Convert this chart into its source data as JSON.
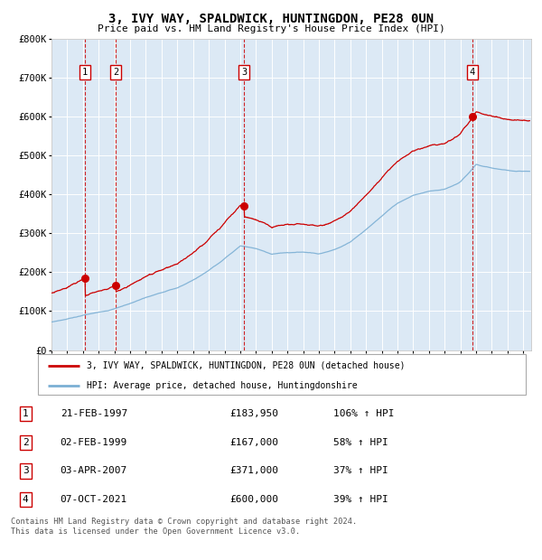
{
  "title": "3, IVY WAY, SPALDWICK, HUNTINGDON, PE28 0UN",
  "subtitle": "Price paid vs. HM Land Registry's House Price Index (HPI)",
  "background_color": "#dce9f5",
  "plot_bg_color": "#dce9f5",
  "hpi_line_color": "#7bafd4",
  "price_line_color": "#cc0000",
  "grid_color": "#ffffff",
  "sale_marker_color": "#cc0000",
  "vline_color": "#cc0000",
  "purchases": [
    {
      "label": "1",
      "date_x": 1997.12,
      "price": 183950
    },
    {
      "label": "2",
      "date_x": 1999.08,
      "price": 167000
    },
    {
      "label": "3",
      "date_x": 2007.25,
      "price": 371000
    },
    {
      "label": "4",
      "date_x": 2021.77,
      "price": 600000
    }
  ],
  "legend_entries": [
    "3, IVY WAY, SPALDWICK, HUNTINGDON, PE28 0UN (detached house)",
    "HPI: Average price, detached house, Huntingdonshire"
  ],
  "table_rows": [
    [
      "1",
      "21-FEB-1997",
      "£183,950",
      "106% ↑ HPI"
    ],
    [
      "2",
      "02-FEB-1999",
      "£167,000",
      "58% ↑ HPI"
    ],
    [
      "3",
      "03-APR-2007",
      "£371,000",
      "37% ↑ HPI"
    ],
    [
      "4",
      "07-OCT-2021",
      "£600,000",
      "39% ↑ HPI"
    ]
  ],
  "footer": "Contains HM Land Registry data © Crown copyright and database right 2024.\nThis data is licensed under the Open Government Licence v3.0.",
  "ylim": [
    0,
    800000
  ],
  "yticks": [
    0,
    100000,
    200000,
    300000,
    400000,
    500000,
    600000,
    700000,
    800000
  ],
  "ytick_labels": [
    "£0",
    "£100K",
    "£200K",
    "£300K",
    "£400K",
    "£500K",
    "£600K",
    "£700K",
    "£800K"
  ],
  "xlim_start": 1995.0,
  "xlim_end": 2025.5,
  "hpi_anchors_x": [
    1995,
    1996,
    1997,
    1998,
    1999,
    2000,
    2001,
    2002,
    2003,
    2004,
    2005,
    2006,
    2007,
    2008,
    2009,
    2010,
    2011,
    2012,
    2013,
    2014,
    2015,
    2016,
    2017,
    2018,
    2019,
    2020,
    2021,
    2022,
    2023,
    2024,
    2025
  ],
  "hpi_anchors_y": [
    72000,
    80000,
    89000,
    97000,
    106000,
    120000,
    135000,
    148000,
    160000,
    180000,
    205000,
    235000,
    268000,
    262000,
    247000,
    250000,
    252000,
    248000,
    258000,
    278000,
    310000,
    345000,
    378000,
    398000,
    408000,
    413000,
    432000,
    478000,
    468000,
    462000,
    460000
  ]
}
